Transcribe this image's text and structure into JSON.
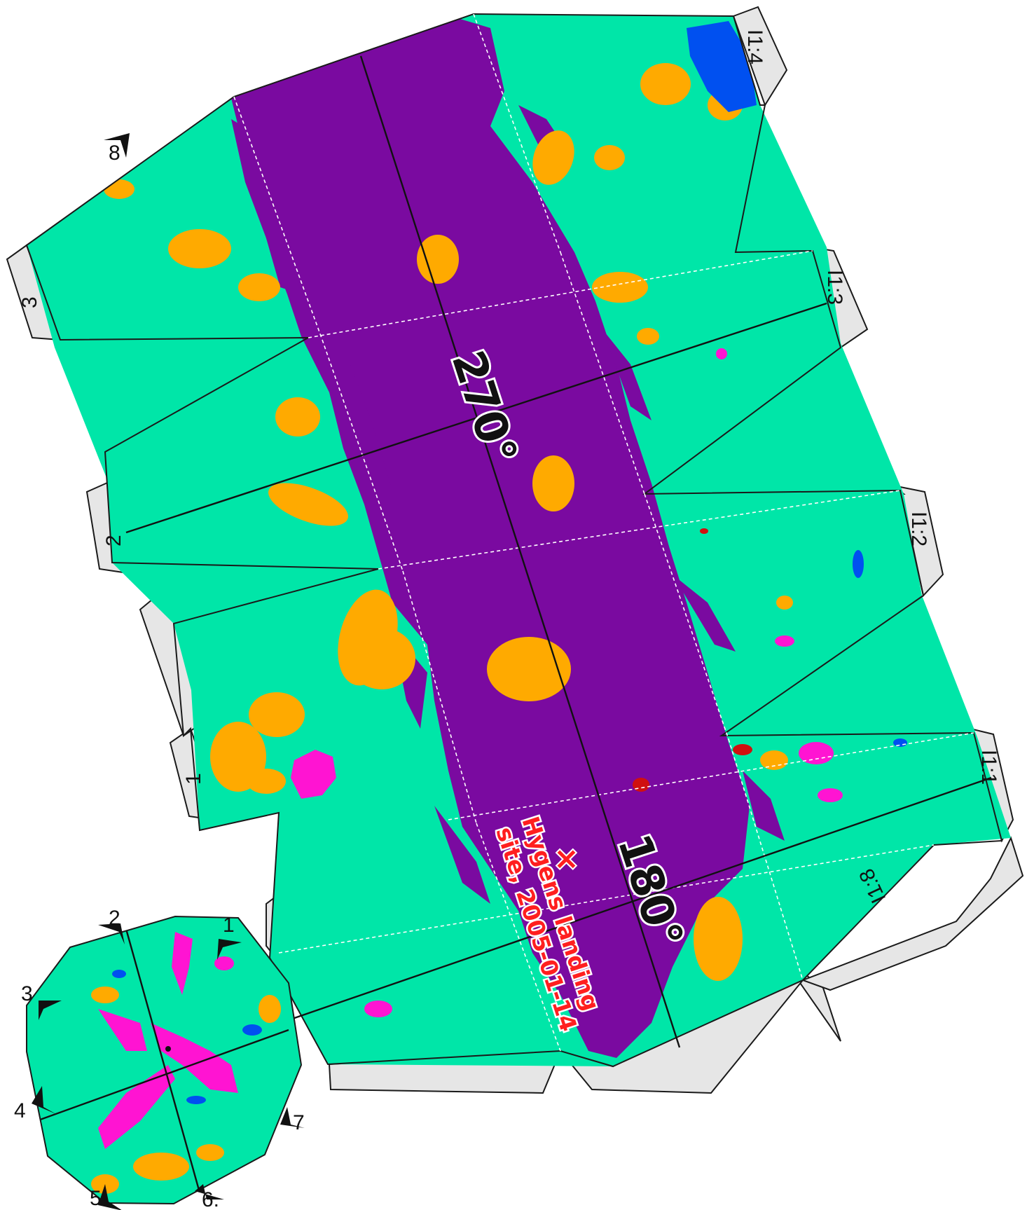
{
  "map": {
    "longitude_labels": [
      "270°",
      "180°"
    ],
    "landing_site": {
      "marker": "×",
      "line1": "Hygens landing",
      "line2": "site, 2005-01-14"
    },
    "tab_labels": [
      "I1:4",
      "I1:3",
      "I1:2",
      "I1:1",
      "I1:8",
      "1",
      "2",
      "3"
    ],
    "polar_labels": [
      "1",
      "2",
      "3",
      "4",
      "5",
      "6.",
      "7",
      "8"
    ],
    "colors": {
      "bright_terrain": "#00e6a8",
      "dark_terrain": "#7a0aa0",
      "orange_terrain": "#ffaa00",
      "blue_terrain": "#0050f0",
      "magenta_terrain": "#ff14d2",
      "red_feature": "#d01010",
      "tab_fill": "#e6e6e6",
      "fold_line": "#ffffff",
      "site_text": "#ff1f1f"
    }
  }
}
